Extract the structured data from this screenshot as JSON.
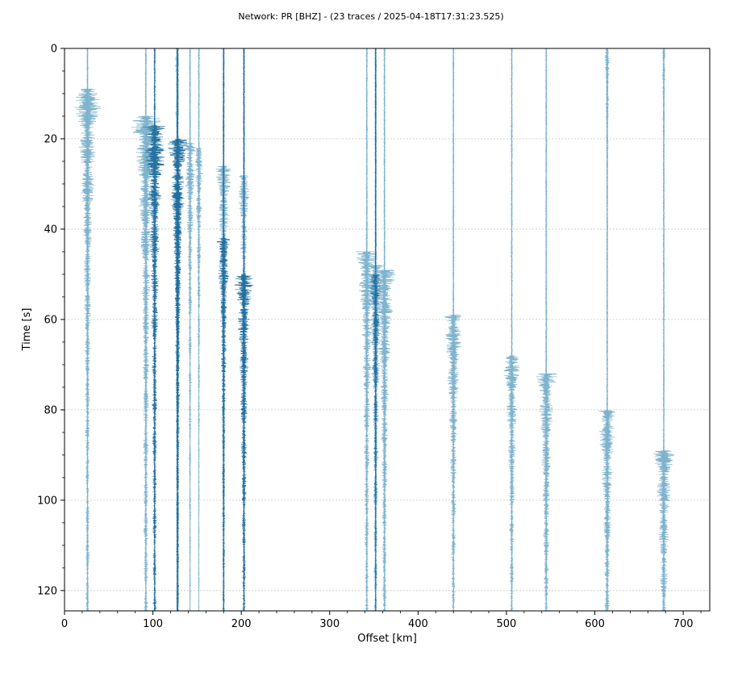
{
  "chart_data": {
    "type": "seismic-section",
    "title": "Network: PR [BHZ] - (23 traces / 2025-04-18T17:31:23.525)",
    "xlabel": "Offset [km]",
    "ylabel": "Time [s]",
    "xlim": [
      0,
      730
    ],
    "ylim": [
      0,
      124.5
    ],
    "y_inverted": true,
    "xticks": [
      0,
      100,
      200,
      300,
      400,
      500,
      600,
      700
    ],
    "yticks": [
      0,
      20,
      40,
      60,
      80,
      100,
      120
    ],
    "grid": true,
    "colors": {
      "light": "#7ab0cb",
      "dark": "#1f6e9e",
      "grid": "#c8c8c8"
    },
    "traces": [
      {
        "offset": 26,
        "color": "light",
        "onset": 9,
        "amp": 20
      },
      {
        "offset": 92,
        "color": "light",
        "onset": 15,
        "amp": 21
      },
      {
        "offset": 102,
        "color": "dark",
        "onset": 17,
        "amp": 18
      },
      {
        "offset": 127,
        "color": "light",
        "onset": 0,
        "amp": 3
      },
      {
        "offset": 128,
        "color": "dark",
        "onset": 20,
        "amp": 14
      },
      {
        "offset": 142,
        "color": "light",
        "onset": 21,
        "amp": 9
      },
      {
        "offset": 152,
        "color": "light",
        "onset": 22,
        "amp": 7
      },
      {
        "offset": 180,
        "color": "light",
        "onset": 26,
        "amp": 12
      },
      {
        "offset": 180,
        "color": "dark",
        "onset": 42,
        "amp": 10
      },
      {
        "offset": 203,
        "color": "light",
        "onset": 28,
        "amp": 9
      },
      {
        "offset": 203,
        "color": "dark",
        "onset": 50,
        "amp": 14
      },
      {
        "offset": 342,
        "color": "light",
        "onset": 45,
        "amp": 15
      },
      {
        "offset": 352,
        "color": "light",
        "onset": 48,
        "amp": 14
      },
      {
        "offset": 352,
        "color": "dark",
        "onset": 50,
        "amp": 8
      },
      {
        "offset": 362,
        "color": "light",
        "onset": 49,
        "amp": 16
      },
      {
        "offset": 440,
        "color": "light",
        "onset": 59,
        "amp": 14
      },
      {
        "offset": 506,
        "color": "light",
        "onset": 68,
        "amp": 12
      },
      {
        "offset": 545,
        "color": "light",
        "onset": 72,
        "amp": 14
      },
      {
        "offset": 614,
        "color": "light",
        "onset": 80,
        "amp": 14
      },
      {
        "offset": 614,
        "color": "light",
        "onset": 0,
        "amp": 4
      },
      {
        "offset": 678,
        "color": "light",
        "onset": 89,
        "amp": 14
      },
      {
        "offset": 678,
        "color": "light",
        "onset": 0,
        "amp": 3
      },
      {
        "offset": 128,
        "color": "dark",
        "onset": 30,
        "amp": 10
      }
    ]
  }
}
